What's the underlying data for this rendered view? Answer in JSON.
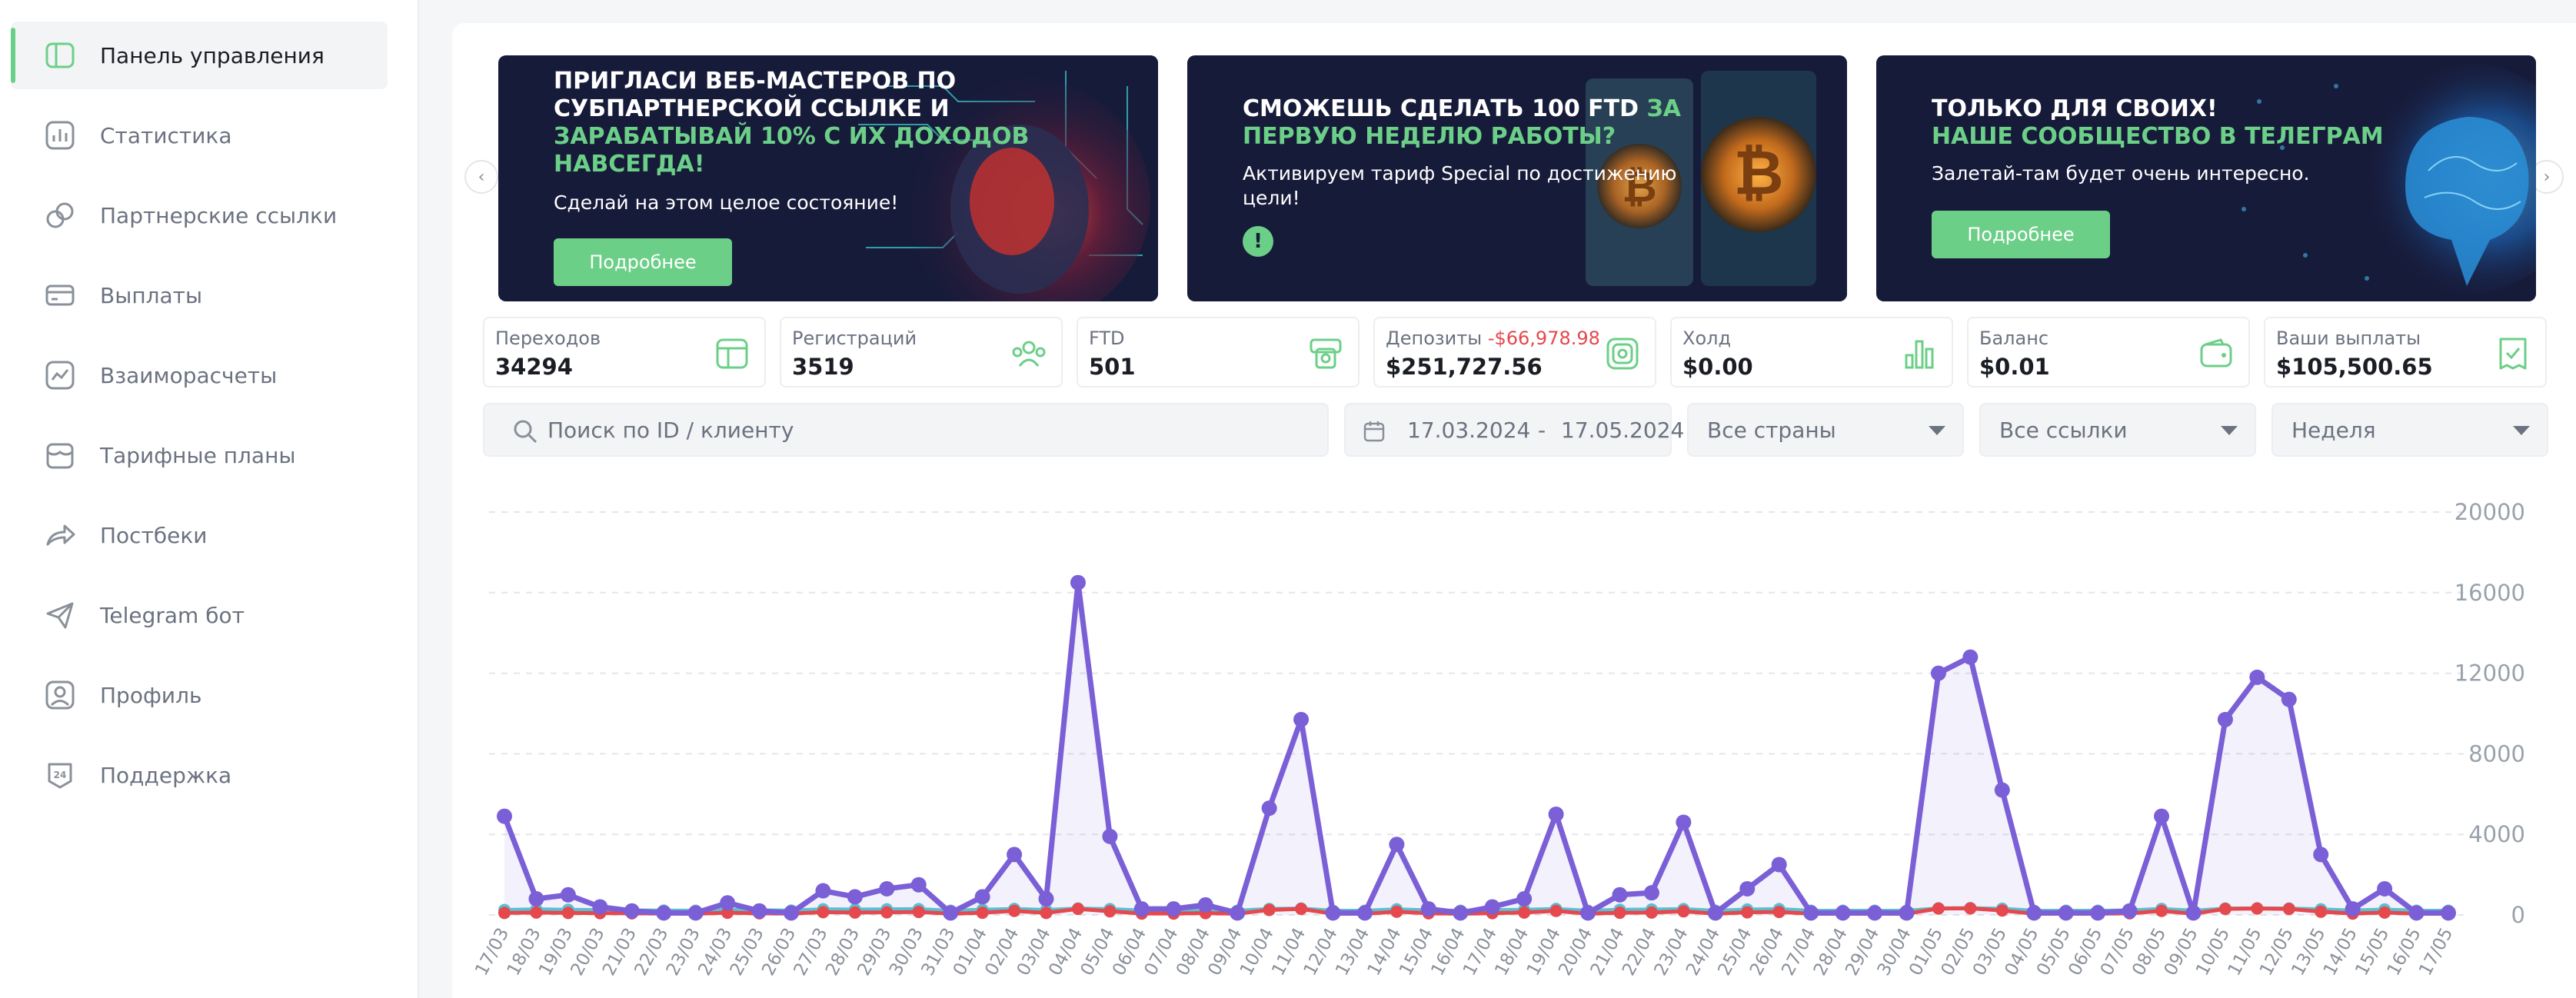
{
  "sidebar": {
    "items": [
      {
        "label": "Панель управления",
        "icon": "layout-icon",
        "active": true
      },
      {
        "label": "Статистика",
        "icon": "chart-icon"
      },
      {
        "label": "Партнерские ссылки",
        "icon": "link-icon"
      },
      {
        "label": "Выплаты",
        "icon": "wallet-icon"
      },
      {
        "label": "Взаиморасчеты",
        "icon": "trend-icon"
      },
      {
        "label": "Тарифные планы",
        "icon": "store-icon"
      },
      {
        "label": "Постбеки",
        "icon": "share-icon"
      },
      {
        "label": "Telegram бот",
        "icon": "send-icon"
      },
      {
        "label": "Профиль",
        "icon": "user-icon"
      },
      {
        "label": "Поддержка",
        "icon": "support-icon"
      }
    ]
  },
  "banners": [
    {
      "title_line1": "ПРИГЛАСИ ВЕБ-МАСТЕРОВ ПО",
      "title_line2": "СУБПАРТНЕРСКОЙ ССЫЛКЕ И",
      "title_green_line1": "ЗАРАБАТЫВАЙ 10% С ИХ ДОХОДОВ",
      "title_green_line2": "НАВСЕГДА!",
      "text": "Сделай на этом целое состояние!",
      "button": "Подробнее"
    },
    {
      "title_line1": "СМОЖЕШЬ СДЕЛАТЬ 100 FTD",
      "title_green_inline": "ЗА",
      "title_green_line2": "ПЕРВУЮ НЕДЕЛЮ РАБОТЫ?",
      "text_line1": "Активируем тариф Special по достижению",
      "text_line2": "цели!",
      "badge": "!"
    },
    {
      "title_line1": "ТОЛЬКО ДЛЯ СВОИХ!",
      "title_green_line1": "НАШЕ СООБЩЕСТВО В ТЕЛЕГРАМ",
      "text": "Залетай-там будет очень интересно.",
      "button": "Подробнее"
    }
  ],
  "carousel": {
    "prev": "‹",
    "next": "›"
  },
  "stats": [
    {
      "label": "Переходов",
      "value": "34294",
      "icon": "browser-icon"
    },
    {
      "label": "Регистраций",
      "value": "3519",
      "icon": "users-icon"
    },
    {
      "label": "FTD",
      "value": "501",
      "icon": "cash-icon"
    },
    {
      "label": "Депозиты",
      "label_extra": "-$66,978.98",
      "value": "$251,727.56",
      "icon": "deposit-icon"
    },
    {
      "label": "Холд",
      "value": "$0.00",
      "icon": "bars-icon"
    },
    {
      "label": "Баланс",
      "value": "$0.01",
      "icon": "wallet-icon"
    },
    {
      "label": "Ваши выплаты",
      "value": "$105,500.65",
      "icon": "payout-icon"
    }
  ],
  "filters": {
    "search_placeholder": "Поиск по ID / клиенту",
    "date_from": "17.03.2024",
    "date_sep": "-",
    "date_to": "17.05.2024",
    "country": "Все страны",
    "links": "Все ссылки",
    "period": "Неделя"
  },
  "colors": {
    "accent": "#6ccf88",
    "banner_bg": "#171b3a",
    "series_main": "#7b5fd6",
    "series_red": "#e5484d",
    "series_teal": "#5bbfd1",
    "negative": "#e5484d"
  },
  "chart_data": {
    "type": "line",
    "ylim": [
      0,
      20000
    ],
    "yticks": [
      "20000",
      "16000",
      "12000",
      "8000",
      "4000",
      "0"
    ],
    "categories": [
      "17/03",
      "18/03",
      "19/03",
      "20/03",
      "21/03",
      "22/03",
      "23/03",
      "24/03",
      "25/03",
      "26/03",
      "27/03",
      "28/03",
      "29/03",
      "30/03",
      "31/03",
      "01/04",
      "02/04",
      "03/04",
      "04/04",
      "05/04",
      "06/04",
      "07/04",
      "08/04",
      "09/04",
      "10/04",
      "11/04",
      "12/04",
      "13/04",
      "14/04",
      "15/04",
      "16/04",
      "17/04",
      "18/04",
      "19/04",
      "20/04",
      "21/04",
      "22/04",
      "23/04",
      "24/04",
      "25/04",
      "26/04",
      "27/04",
      "28/04",
      "29/04",
      "30/04",
      "01/05",
      "02/05",
      "03/05",
      "04/05",
      "05/05",
      "06/05",
      "07/05",
      "08/05",
      "09/05",
      "10/05",
      "11/05",
      "12/05",
      "13/05",
      "14/05",
      "15/05",
      "16/05",
      "17/05"
    ],
    "series": [
      {
        "values": [
          4900,
          800,
          1000,
          400,
          200,
          100,
          100,
          600,
          200,
          100,
          1200,
          900,
          1300,
          1500,
          100,
          900,
          3000,
          800,
          16500,
          3900,
          300,
          300,
          500,
          100,
          5300,
          9700,
          100,
          100,
          3500,
          300,
          100,
          400,
          800,
          5000,
          100,
          1000,
          1100,
          4600,
          100,
          1300,
          2500,
          100,
          100,
          100,
          100,
          12000,
          12800,
          6200,
          100,
          100,
          100,
          200,
          4900,
          100,
          9700,
          11800,
          10700,
          3000,
          300,
          1300,
          100,
          100
        ]
      },
      {
        "values": [
          100,
          120,
          100,
          90,
          80,
          70,
          60,
          110,
          80,
          70,
          140,
          120,
          130,
          150,
          60,
          110,
          200,
          100,
          300,
          180,
          70,
          70,
          90,
          60,
          250,
          300,
          60,
          60,
          160,
          80,
          60,
          90,
          120,
          200,
          60,
          110,
          120,
          180,
          60,
          130,
          150,
          60,
          60,
          60,
          60,
          320,
          330,
          220,
          60,
          60,
          60,
          80,
          200,
          60,
          300,
          320,
          300,
          160,
          70,
          120,
          60,
          60
        ]
      },
      {
        "values": [
          250,
          280,
          260,
          240,
          230,
          220,
          210,
          260,
          230,
          220,
          280,
          270,
          280,
          290,
          210,
          260,
          300,
          250,
          320,
          290,
          220,
          220,
          240,
          210,
          300,
          320,
          210,
          210,
          280,
          230,
          210,
          240,
          260,
          300,
          210,
          260,
          270,
          290,
          210,
          270,
          290,
          210,
          210,
          210,
          210,
          330,
          340,
          310,
          210,
          210,
          210,
          230,
          300,
          210,
          320,
          330,
          320,
          280,
          220,
          270,
          210,
          210
        ]
      }
    ]
  }
}
